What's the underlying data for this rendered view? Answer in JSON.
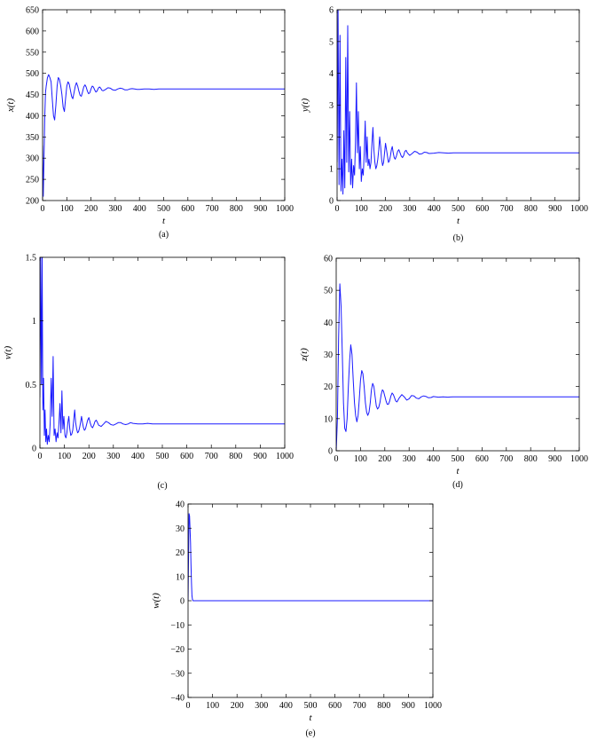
{
  "chart_data": [
    {
      "id": "a",
      "type": "line",
      "caption": "(a)",
      "xlabel": "t",
      "ylabel": "x(t)",
      "xlim": [
        0,
        1000
      ],
      "ylim": [
        200,
        650
      ],
      "xticks": [
        0,
        100,
        200,
        300,
        400,
        500,
        600,
        700,
        800,
        900,
        1000
      ],
      "yticks": [
        200,
        250,
        300,
        350,
        400,
        450,
        500,
        550,
        600,
        650
      ],
      "color": "#1a1aff",
      "series": [
        {
          "x": [
            0,
            3,
            6,
            9,
            12,
            15,
            20,
            25,
            30,
            35,
            40,
            45,
            50,
            55,
            60,
            65,
            70,
            75,
            80,
            85,
            90,
            95,
            100,
            105,
            110,
            115,
            120,
            125,
            130,
            135,
            140,
            145,
            150,
            155,
            160,
            165,
            170,
            175,
            180,
            185,
            190,
            195,
            200,
            205,
            210,
            215,
            220,
            225,
            230,
            235,
            240,
            245,
            250,
            260,
            270,
            280,
            290,
            300,
            310,
            320,
            330,
            340,
            350,
            360,
            370,
            380,
            390,
            400,
            420,
            440,
            460,
            480,
            500,
            550,
            600,
            700,
            800,
            900,
            1000
          ],
          "y": [
            330,
            210,
            300,
            400,
            455,
            470,
            490,
            497,
            490,
            480,
            440,
            400,
            390,
            425,
            470,
            490,
            485,
            470,
            450,
            420,
            410,
            440,
            470,
            480,
            475,
            460,
            445,
            440,
            455,
            470,
            478,
            470,
            458,
            448,
            446,
            456,
            468,
            473,
            468,
            458,
            452,
            454,
            463,
            470,
            468,
            461,
            456,
            458,
            465,
            468,
            465,
            460,
            459,
            462,
            466,
            465,
            461,
            460,
            463,
            465,
            464,
            461,
            461,
            463,
            464,
            463,
            462,
            462,
            463,
            463,
            462,
            463,
            463,
            463,
            463,
            463,
            463,
            463,
            463
          ]
        }
      ]
    },
    {
      "id": "b",
      "type": "line",
      "caption": "(b)",
      "xlabel": "t",
      "ylabel": "y(t)",
      "xlim": [
        0,
        1000
      ],
      "ylim": [
        0,
        6
      ],
      "xticks": [
        0,
        100,
        200,
        300,
        400,
        500,
        600,
        700,
        800,
        900,
        1000
      ],
      "yticks": [
        0,
        1,
        2,
        3,
        4,
        5,
        6
      ],
      "color": "#1a1aff",
      "series": [
        {
          "x": [
            0,
            4,
            8,
            12,
            16,
            20,
            24,
            28,
            32,
            36,
            40,
            44,
            48,
            52,
            56,
            60,
            64,
            68,
            72,
            76,
            80,
            84,
            88,
            92,
            96,
            100,
            104,
            108,
            112,
            116,
            120,
            124,
            128,
            132,
            136,
            140,
            144,
            148,
            152,
            156,
            160,
            164,
            168,
            172,
            176,
            180,
            184,
            188,
            192,
            196,
            200,
            204,
            208,
            212,
            216,
            220,
            224,
            228,
            232,
            236,
            240,
            245,
            250,
            255,
            260,
            265,
            270,
            275,
            280,
            285,
            290,
            300,
            310,
            320,
            330,
            340,
            350,
            360,
            370,
            380,
            400,
            420,
            440,
            460,
            480,
            500,
            550,
            600,
            700,
            800,
            900,
            1000
          ],
          "y": [
            1.2,
            6,
            0.5,
            5.2,
            0.3,
            1.3,
            0.2,
            2.2,
            0.4,
            4.5,
            1.2,
            5.5,
            0.9,
            2.8,
            0.5,
            1.3,
            0.4,
            1.1,
            0.8,
            1.8,
            3.7,
            1.5,
            2.8,
            1.0,
            1.7,
            0.6,
            1.0,
            0.8,
            1.5,
            2.5,
            1.2,
            2.0,
            1.1,
            1.3,
            1.0,
            1.2,
            1.8,
            2.3,
            1.6,
            1.2,
            1.0,
            1.1,
            1.3,
            1.6,
            2.0,
            1.7,
            1.3,
            1.1,
            1.2,
            1.5,
            1.8,
            1.6,
            1.4,
            1.2,
            1.25,
            1.4,
            1.6,
            1.7,
            1.5,
            1.35,
            1.3,
            1.4,
            1.55,
            1.6,
            1.5,
            1.4,
            1.35,
            1.42,
            1.55,
            1.58,
            1.5,
            1.42,
            1.48,
            1.55,
            1.52,
            1.46,
            1.47,
            1.52,
            1.51,
            1.48,
            1.49,
            1.51,
            1.5,
            1.49,
            1.5,
            1.5,
            1.5,
            1.5,
            1.5,
            1.5,
            1.5,
            1.5
          ]
        }
      ]
    },
    {
      "id": "c",
      "type": "line",
      "caption": "(c)",
      "xlabel": "",
      "ylabel": "v(t)",
      "xlim": [
        0,
        1000
      ],
      "ylim": [
        0,
        1.5
      ],
      "xticks": [
        0,
        100,
        200,
        300,
        400,
        500,
        600,
        700,
        800,
        900,
        1000
      ],
      "yticks": [
        0,
        0.5,
        1,
        1.5
      ],
      "color": "#1a1aff",
      "series": [
        {
          "x": [
            0,
            3,
            6,
            9,
            12,
            15,
            18,
            21,
            24,
            27,
            30,
            34,
            38,
            42,
            46,
            50,
            54,
            58,
            62,
            66,
            70,
            74,
            78,
            82,
            86,
            90,
            94,
            98,
            102,
            106,
            110,
            114,
            118,
            122,
            126,
            130,
            134,
            138,
            142,
            146,
            150,
            154,
            158,
            162,
            166,
            170,
            174,
            178,
            182,
            186,
            190,
            195,
            200,
            205,
            210,
            215,
            220,
            225,
            230,
            235,
            240,
            250,
            260,
            270,
            280,
            290,
            300,
            310,
            320,
            330,
            340,
            350,
            360,
            370,
            380,
            400,
            420,
            440,
            460,
            480,
            500,
            550,
            600,
            700,
            800,
            900,
            1000
          ],
          "y": [
            0.4,
            1.5,
            0.5,
            1.5,
            0.3,
            0.55,
            0.1,
            0.3,
            0.05,
            0.15,
            0.03,
            0.1,
            0.05,
            0.2,
            0.55,
            0.25,
            0.72,
            0.1,
            0.15,
            0.05,
            0.12,
            0.08,
            0.2,
            0.35,
            0.12,
            0.45,
            0.15,
            0.25,
            0.1,
            0.08,
            0.12,
            0.2,
            0.25,
            0.15,
            0.1,
            0.11,
            0.14,
            0.22,
            0.3,
            0.2,
            0.15,
            0.12,
            0.13,
            0.16,
            0.2,
            0.25,
            0.2,
            0.16,
            0.14,
            0.15,
            0.18,
            0.22,
            0.24,
            0.2,
            0.17,
            0.16,
            0.18,
            0.21,
            0.22,
            0.2,
            0.18,
            0.17,
            0.19,
            0.21,
            0.2,
            0.185,
            0.18,
            0.19,
            0.2,
            0.2,
            0.19,
            0.185,
            0.19,
            0.2,
            0.195,
            0.19,
            0.19,
            0.195,
            0.19,
            0.19,
            0.19,
            0.19,
            0.19,
            0.19,
            0.19,
            0.19,
            0.19
          ]
        }
      ]
    },
    {
      "id": "d",
      "type": "line",
      "caption": "(d)",
      "xlabel": "t",
      "ylabel": "z(t)",
      "xlim": [
        0,
        1000
      ],
      "ylim": [
        0,
        60
      ],
      "xticks": [
        0,
        100,
        200,
        300,
        400,
        500,
        600,
        700,
        800,
        900,
        1000
      ],
      "yticks": [
        0,
        10,
        20,
        30,
        40,
        50,
        60
      ],
      "color": "#1a1aff",
      "series": [
        {
          "x": [
            0,
            5,
            10,
            15,
            20,
            25,
            30,
            35,
            40,
            45,
            50,
            55,
            60,
            65,
            70,
            75,
            80,
            85,
            90,
            95,
            100,
            105,
            110,
            115,
            120,
            125,
            130,
            135,
            140,
            145,
            150,
            155,
            160,
            165,
            170,
            175,
            180,
            185,
            190,
            195,
            200,
            205,
            210,
            215,
            220,
            225,
            230,
            235,
            240,
            245,
            250,
            260,
            270,
            280,
            290,
            300,
            310,
            320,
            330,
            340,
            350,
            360,
            370,
            380,
            390,
            400,
            420,
            440,
            460,
            480,
            500,
            550,
            600,
            700,
            800,
            900,
            1000
          ],
          "y": [
            0,
            10,
            35,
            52,
            45,
            30,
            15,
            7,
            6,
            10,
            20,
            28,
            33,
            30,
            22,
            15,
            11,
            9,
            11,
            16,
            22,
            25,
            24,
            20,
            15,
            12,
            11,
            12,
            15,
            19,
            21,
            20,
            17,
            14,
            13,
            13.5,
            15,
            17.5,
            19,
            18.5,
            17,
            15.5,
            14.5,
            14.5,
            15.5,
            17,
            18,
            17.5,
            16.5,
            15.5,
            15.2,
            16.5,
            17.5,
            16.8,
            15.8,
            16.2,
            17.2,
            17.1,
            16.4,
            16.2,
            16.8,
            17.1,
            16.9,
            16.5,
            16.6,
            16.9,
            16.7,
            16.8,
            16.7,
            16.8,
            16.8,
            16.8,
            16.8,
            16.8,
            16.8,
            16.8,
            16.8
          ]
        }
      ]
    },
    {
      "id": "e",
      "type": "line",
      "caption": "(e)",
      "xlabel": "t",
      "ylabel": "w(t)",
      "xlim": [
        0,
        1000
      ],
      "ylim": [
        -40,
        40
      ],
      "xticks": [
        0,
        100,
        200,
        300,
        400,
        500,
        600,
        700,
        800,
        900,
        1000
      ],
      "yticks": [
        -40,
        -30,
        -20,
        -10,
        0,
        10,
        20,
        30,
        40
      ],
      "color": "#1a1aff",
      "series": [
        {
          "x": [
            0,
            2,
            4,
            6,
            8,
            10,
            12,
            14,
            16,
            18,
            20,
            25,
            30,
            40,
            60,
            100,
            200,
            400,
            600,
            800,
            1000
          ],
          "y": [
            0,
            20,
            36,
            35,
            30,
            24,
            15,
            7,
            2,
            0.5,
            0,
            0,
            0,
            0,
            0,
            0,
            0,
            0,
            0,
            0,
            0
          ]
        }
      ]
    }
  ]
}
